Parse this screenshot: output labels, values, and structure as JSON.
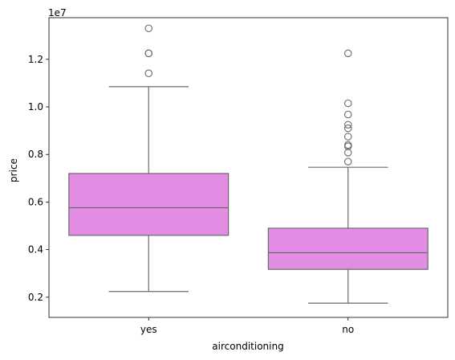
{
  "chart_data": {
    "type": "box",
    "xlabel": "airconditioning",
    "ylabel": "price",
    "offset_text": "1e7",
    "y_scale_factor": 10000000,
    "ylim": [
      0.115,
      1.375
    ],
    "yticks": [
      0.2,
      0.4,
      0.6,
      0.8,
      1.0,
      1.2
    ],
    "ytick_labels": [
      "0.2",
      "0.4",
      "0.6",
      "0.8",
      "1.0",
      "1.2"
    ],
    "categories": [
      "yes",
      "no"
    ],
    "box_color": "#e38ce3",
    "line_color": "#6a6a6a",
    "boxes": [
      {
        "category": "yes",
        "whisker_low": 0.224,
        "q1": 0.46,
        "median": 0.576,
        "q3": 0.72,
        "whisker_high": 1.085,
        "outliers": [
          1.141,
          1.225,
          1.225,
          1.33
        ]
      },
      {
        "category": "no",
        "whisker_low": 0.175,
        "q1": 0.317,
        "median": 0.387,
        "q3": 0.49,
        "whisker_high": 0.746,
        "outliers": [
          0.77,
          0.808,
          0.834,
          0.84,
          0.875,
          0.91,
          0.925,
          0.968,
          1.015,
          1.225
        ]
      }
    ]
  }
}
